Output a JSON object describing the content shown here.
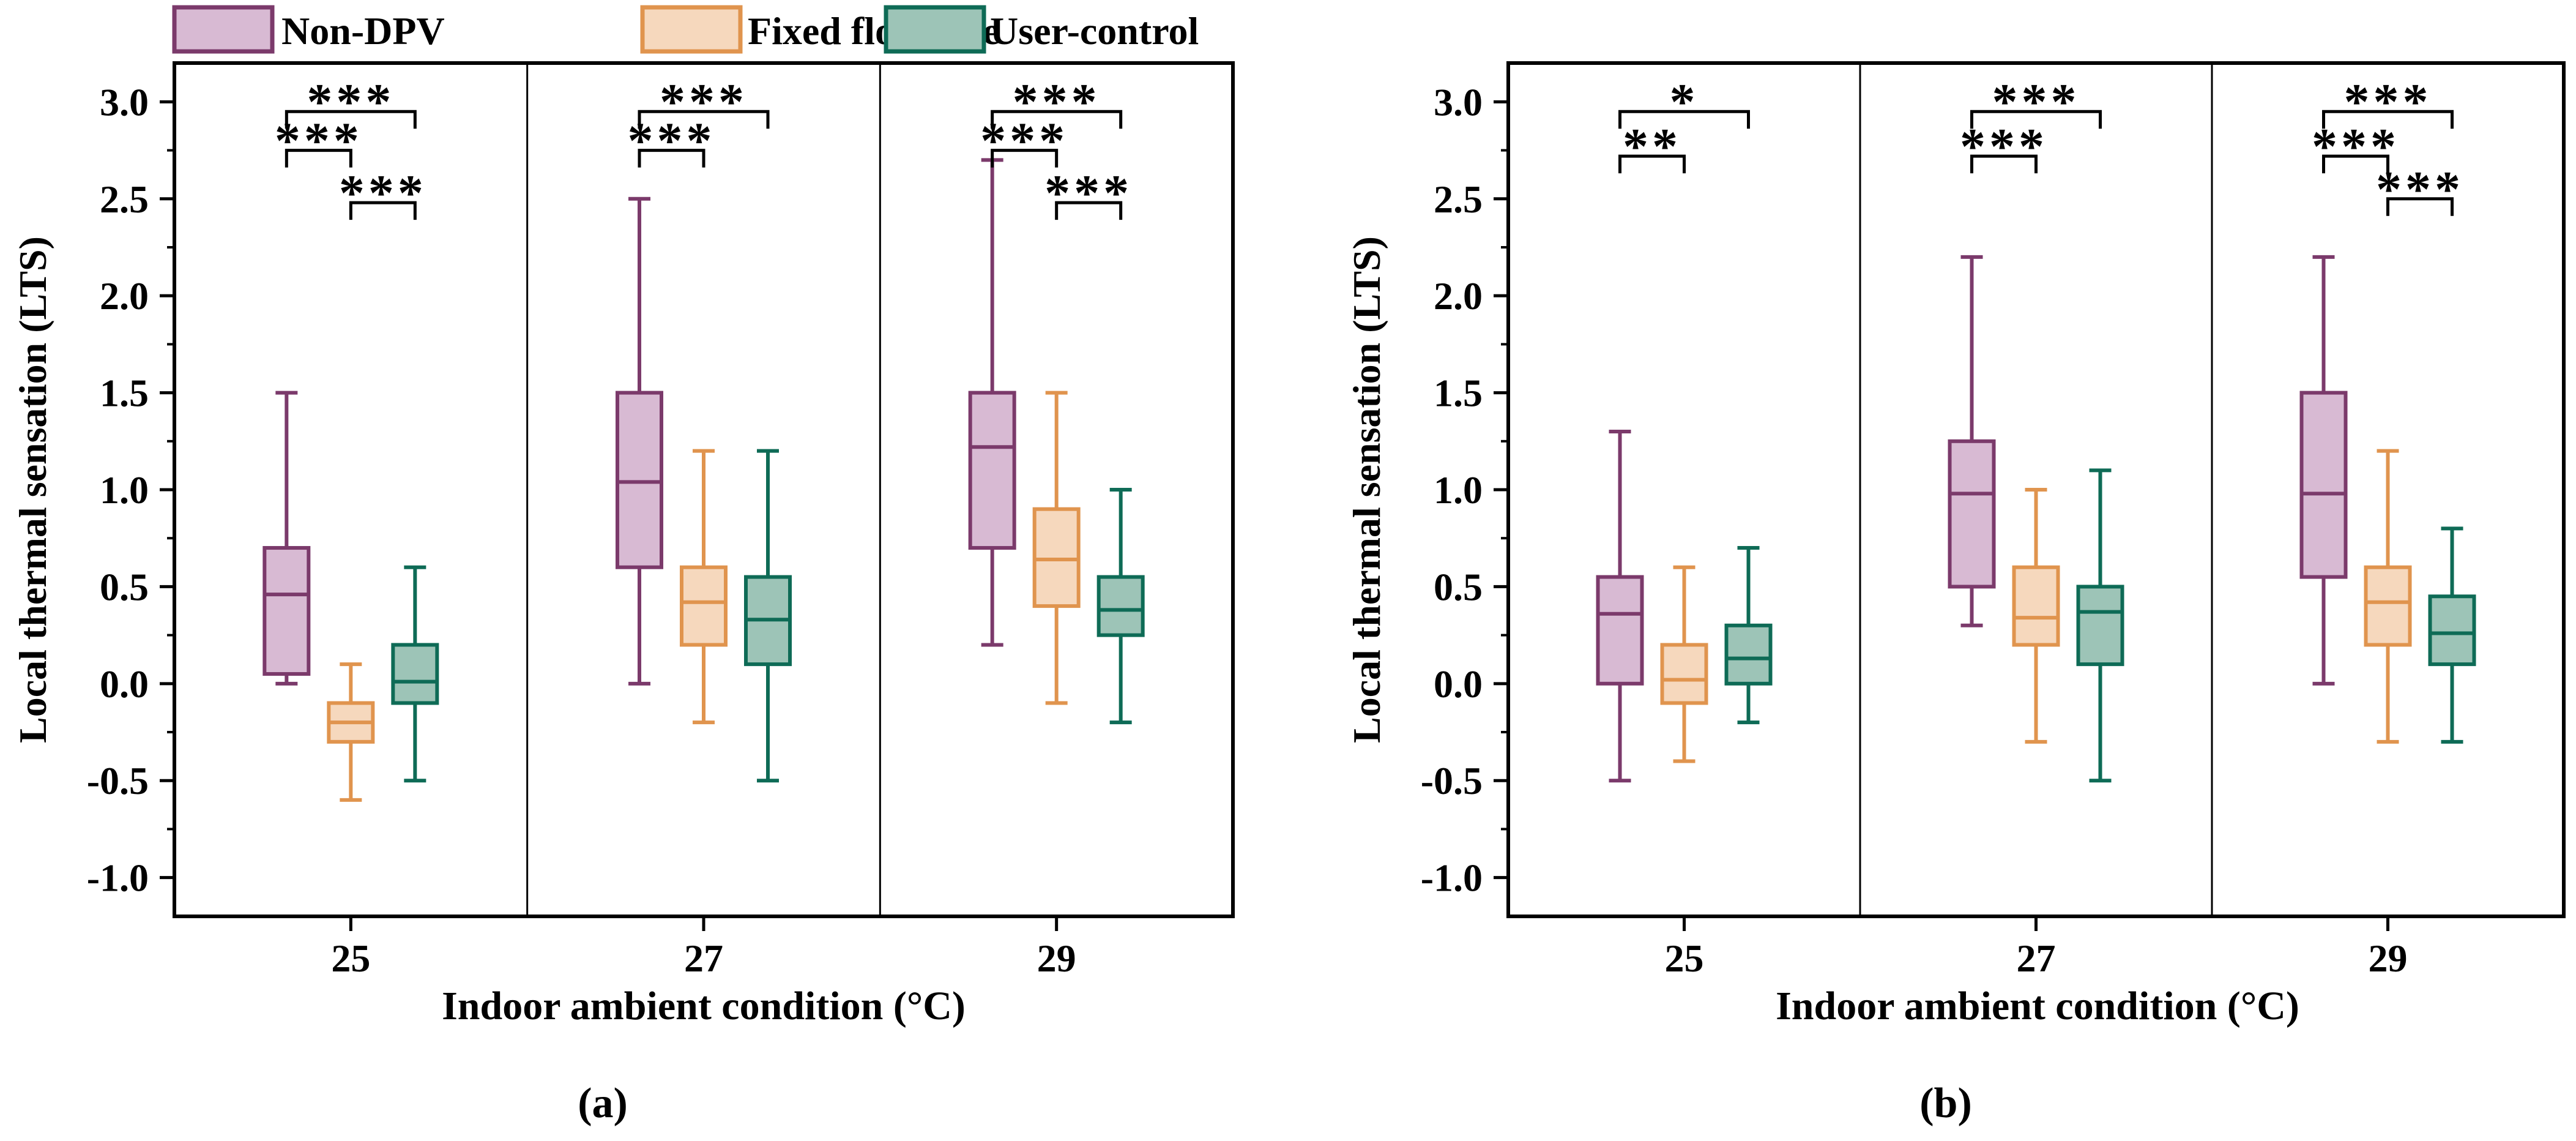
{
  "legend": {
    "entries": [
      {
        "name": "Non-DPV",
        "stroke": "#7b3a6b",
        "fill": "#d8bad3"
      },
      {
        "name": "Fixed flow rate",
        "stroke": "#e0944e",
        "fill": "#f6d8bd"
      },
      {
        "name": "User-control",
        "stroke": "#0e6b56",
        "fill": "#9dc4b7"
      }
    ]
  },
  "chart_data": [
    {
      "type": "box",
      "panel_label": "(a)",
      "xlabel": "Indoor ambient condition (°C)",
      "ylabel": "Local thermal sensation (LTS)",
      "ylim": [
        -1.2,
        3.2
      ],
      "yticks": [
        -1.0,
        -0.5,
        0.0,
        0.5,
        1.0,
        1.5,
        2.0,
        2.5,
        3.0
      ],
      "ytick_labels": [
        "-1.0",
        "-0.5",
        "0.0",
        "0.5",
        "1.0",
        "1.5",
        "2.0",
        "2.5",
        "3.0"
      ],
      "categories": [
        "25",
        "27",
        "29"
      ],
      "series": [
        {
          "name": "Non-DPV",
          "boxes": [
            {
              "min": 0.0,
              "q1": 0.05,
              "median": 0.46,
              "q3": 0.7,
              "max": 1.5
            },
            {
              "min": 0.0,
              "q1": 0.6,
              "median": 1.04,
              "q3": 1.5,
              "max": 2.5
            },
            {
              "min": 0.2,
              "q1": 0.7,
              "median": 1.22,
              "q3": 1.5,
              "max": 2.7
            }
          ]
        },
        {
          "name": "Fixed flow rate",
          "boxes": [
            {
              "min": -0.6,
              "q1": -0.3,
              "median": -0.2,
              "q3": -0.1,
              "max": 0.1
            },
            {
              "min": -0.2,
              "q1": 0.2,
              "median": 0.42,
              "q3": 0.6,
              "max": 1.2
            },
            {
              "min": -0.1,
              "q1": 0.4,
              "median": 0.64,
              "q3": 0.9,
              "max": 1.5
            }
          ]
        },
        {
          "name": "User-control",
          "boxes": [
            {
              "min": -0.5,
              "q1": -0.1,
              "median": 0.01,
              "q3": 0.2,
              "max": 0.6
            },
            {
              "min": -0.5,
              "q1": 0.1,
              "median": 0.33,
              "q3": 0.55,
              "max": 1.2
            },
            {
              "min": -0.2,
              "q1": 0.25,
              "median": 0.38,
              "q3": 0.55,
              "max": 1.0
            }
          ]
        }
      ],
      "annotations": [
        {
          "category": 0,
          "from": 0,
          "to": 2,
          "y": 2.95,
          "label": "***"
        },
        {
          "category": 0,
          "from": 0,
          "to": 1,
          "y": 2.75,
          "label": "***"
        },
        {
          "category": 0,
          "from": 1,
          "to": 2,
          "y": 2.48,
          "label": "***"
        },
        {
          "category": 1,
          "from": 0,
          "to": 2,
          "y": 2.95,
          "label": "***"
        },
        {
          "category": 1,
          "from": 0,
          "to": 1,
          "y": 2.75,
          "label": "***"
        },
        {
          "category": 2,
          "from": 0,
          "to": 2,
          "y": 2.95,
          "label": "***"
        },
        {
          "category": 2,
          "from": 0,
          "to": 1,
          "y": 2.75,
          "label": "***"
        },
        {
          "category": 2,
          "from": 1,
          "to": 2,
          "y": 2.48,
          "label": "***"
        }
      ]
    },
    {
      "type": "box",
      "panel_label": "(b)",
      "xlabel": "Indoor ambient condition (°C)",
      "ylabel": "Local thermal sensation (LTS)",
      "ylim": [
        -1.2,
        3.2
      ],
      "yticks": [
        -1.0,
        -0.5,
        0.0,
        0.5,
        1.0,
        1.5,
        2.0,
        2.5,
        3.0
      ],
      "ytick_labels": [
        "-1.0",
        "-0.5",
        "0.0",
        "0.5",
        "1.0",
        "1.5",
        "2.0",
        "2.5",
        "3.0"
      ],
      "categories": [
        "25",
        "27",
        "29"
      ],
      "series": [
        {
          "name": "Non-DPV",
          "boxes": [
            {
              "min": -0.5,
              "q1": 0.0,
              "median": 0.36,
              "q3": 0.55,
              "max": 1.3
            },
            {
              "min": 0.3,
              "q1": 0.5,
              "median": 0.98,
              "q3": 1.25,
              "max": 2.2
            },
            {
              "min": 0.0,
              "q1": 0.55,
              "median": 0.98,
              "q3": 1.5,
              "max": 2.2
            }
          ]
        },
        {
          "name": "Fixed flow rate",
          "boxes": [
            {
              "min": -0.4,
              "q1": -0.1,
              "median": 0.02,
              "q3": 0.2,
              "max": 0.6
            },
            {
              "min": -0.3,
              "q1": 0.2,
              "median": 0.34,
              "q3": 0.6,
              "max": 1.0
            },
            {
              "min": -0.3,
              "q1": 0.2,
              "median": 0.42,
              "q3": 0.6,
              "max": 1.2
            }
          ]
        },
        {
          "name": "User-control",
          "boxes": [
            {
              "min": -0.2,
              "q1": 0.0,
              "median": 0.13,
              "q3": 0.3,
              "max": 0.7
            },
            {
              "min": -0.5,
              "q1": 0.1,
              "median": 0.37,
              "q3": 0.5,
              "max": 1.1
            },
            {
              "min": -0.3,
              "q1": 0.1,
              "median": 0.26,
              "q3": 0.45,
              "max": 0.8
            }
          ]
        }
      ],
      "annotations": [
        {
          "category": 0,
          "from": 0,
          "to": 2,
          "y": 2.95,
          "label": "*"
        },
        {
          "category": 0,
          "from": 0,
          "to": 1,
          "y": 2.72,
          "label": "**"
        },
        {
          "category": 1,
          "from": 0,
          "to": 2,
          "y": 2.95,
          "label": "***"
        },
        {
          "category": 1,
          "from": 0,
          "to": 1,
          "y": 2.72,
          "label": "***"
        },
        {
          "category": 2,
          "from": 0,
          "to": 2,
          "y": 2.95,
          "label": "***"
        },
        {
          "category": 2,
          "from": 0,
          "to": 1,
          "y": 2.72,
          "label": "***"
        },
        {
          "category": 2,
          "from": 1,
          "to": 2,
          "y": 2.5,
          "label": "***"
        }
      ]
    }
  ]
}
